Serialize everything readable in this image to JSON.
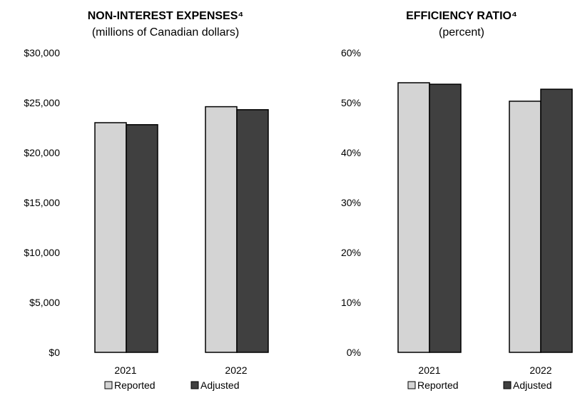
{
  "colors": {
    "reported": "#d4d4d4",
    "adjusted": "#404040",
    "stroke": "#000000"
  },
  "chart_data": [
    {
      "type": "bar",
      "title": "NON-INTEREST EXPENSES⁴",
      "subtitle": "(millions of Canadian dollars)",
      "categories": [
        "2021",
        "2022"
      ],
      "series": [
        {
          "name": "Reported",
          "values": [
            23000,
            24600
          ]
        },
        {
          "name": "Adjusted",
          "values": [
            22800,
            24300
          ]
        }
      ],
      "ylim": [
        0,
        30000
      ],
      "yticks": [
        "$0",
        "$5,000",
        "$10,000",
        "$15,000",
        "$20,000",
        "$25,000",
        "$30,000"
      ],
      "legend_placement": "bottom",
      "grid": false
    },
    {
      "type": "bar",
      "title": "EFFICIENCY RATIO⁴",
      "subtitle": "(percent)",
      "categories": [
        "2021",
        "2022"
      ],
      "series": [
        {
          "name": "Reported",
          "values": [
            54.0,
            50.3
          ]
        },
        {
          "name": "Adjusted",
          "values": [
            53.7,
            52.7
          ]
        }
      ],
      "ylim": [
        0,
        60
      ],
      "yticks": [
        "0%",
        "10%",
        "20%",
        "30%",
        "40%",
        "50%",
        "60%"
      ],
      "legend_placement": "bottom",
      "grid": false
    }
  ]
}
